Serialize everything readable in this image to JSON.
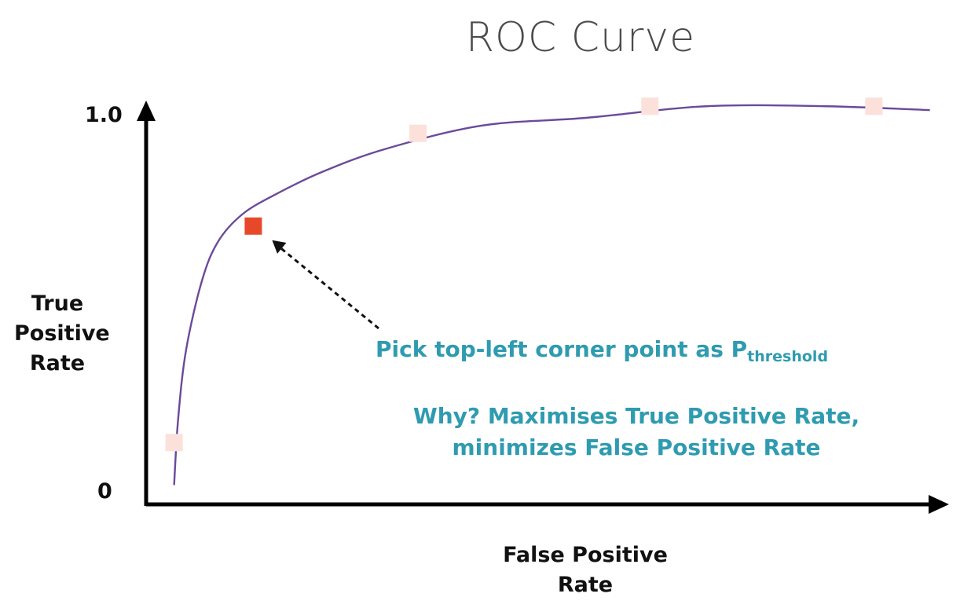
{
  "chart_data": {
    "type": "line",
    "title": "ROC Curve",
    "xlabel": "False Positive Rate",
    "ylabel": "True Positive Rate",
    "y_ticks": [
      "1.0",
      "0"
    ],
    "xlim": [
      0,
      1
    ],
    "ylim": [
      0,
      1
    ],
    "grid": false,
    "legend": "none",
    "series": [
      {
        "color": "#6a4a9a",
        "x": [
          0.035,
          0.04,
          0.05,
          0.07,
          0.09,
          0.12,
          0.16,
          0.22,
          0.3,
          0.42,
          0.55,
          0.7,
          0.85,
          0.98
        ],
        "y": [
          0.05,
          0.22,
          0.4,
          0.58,
          0.68,
          0.75,
          0.8,
          0.86,
          0.92,
          0.98,
          1.0,
          1.03,
          1.03,
          1.02
        ]
      }
    ],
    "markers": [
      {
        "x": 0.035,
        "y": 0.16,
        "color": "#fbe1da"
      },
      {
        "x": 0.134,
        "y": 0.72,
        "color": "#e8482a"
      },
      {
        "x": 0.34,
        "y": 0.96,
        "color": "#fbe1da"
      },
      {
        "x": 0.63,
        "y": 1.03,
        "color": "#fbe1da"
      },
      {
        "x": 0.91,
        "y": 1.03,
        "color": "#fbe1da"
      }
    ],
    "annotations": [
      {
        "text": "Pick top-left corner point as P",
        "subscript": "threshold",
        "color": "#2f9bb0",
        "points_to_marker": 1
      },
      {
        "lines": [
          "Why? Maximises True Positive Rate,",
          "minimizes False Positive Rate"
        ],
        "color": "#2f9bb0"
      }
    ]
  },
  "labels": {
    "ylabel_lines": [
      "True",
      "Positive",
      "Rate"
    ],
    "xlabel_lines": [
      "False Positive",
      "Rate"
    ]
  },
  "colors": {
    "axis": "#000000",
    "curve": "#6a4a9a",
    "highlight": "#e8482a",
    "faded_marker": "#fbe1da",
    "annotation": "#2f9bb0"
  }
}
